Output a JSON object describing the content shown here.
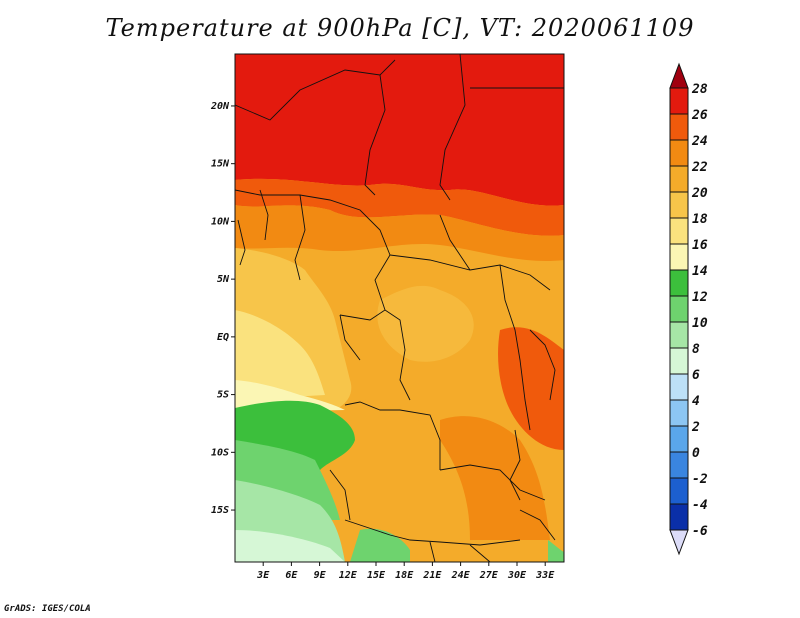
{
  "title": "Temperature at 900hPa [C], VT: 2020061109",
  "credit": "GrADS: IGES/COLA",
  "map": {
    "region": "Central Africa",
    "lon_range": [
      0,
      35
    ],
    "lat_range": [
      -19.5,
      24.5
    ],
    "lon_ticks": [
      "3E",
      "6E",
      "9E",
      "12E",
      "15E",
      "18E",
      "21E",
      "24E",
      "27E",
      "30E",
      "33E"
    ],
    "lat_ticks": [
      "20N",
      "15N",
      "10N",
      "5N",
      "EQ",
      "5S",
      "10S",
      "15S"
    ]
  },
  "colorbar": {
    "levels": [
      "28",
      "26",
      "24",
      "22",
      "20",
      "18",
      "16",
      "14",
      "12",
      "10",
      "8",
      "6",
      "4",
      "2",
      "0",
      "-2",
      "-4",
      "-6"
    ],
    "colors": [
      "#a0000f",
      "#e31a0e",
      "#f05a0c",
      "#f28a12",
      "#f4ab2a",
      "#f7c54a",
      "#fae27e",
      "#fbf6b4",
      "#3cbf3c",
      "#6ed36e",
      "#a6e6a6",
      "#d6f7d6",
      "#bde0f7",
      "#8cc6f3",
      "#5aa6ea",
      "#3a85df",
      "#1c5fcf",
      "#0a2fa8",
      "#000060",
      "#dcdcf8"
    ]
  }
}
